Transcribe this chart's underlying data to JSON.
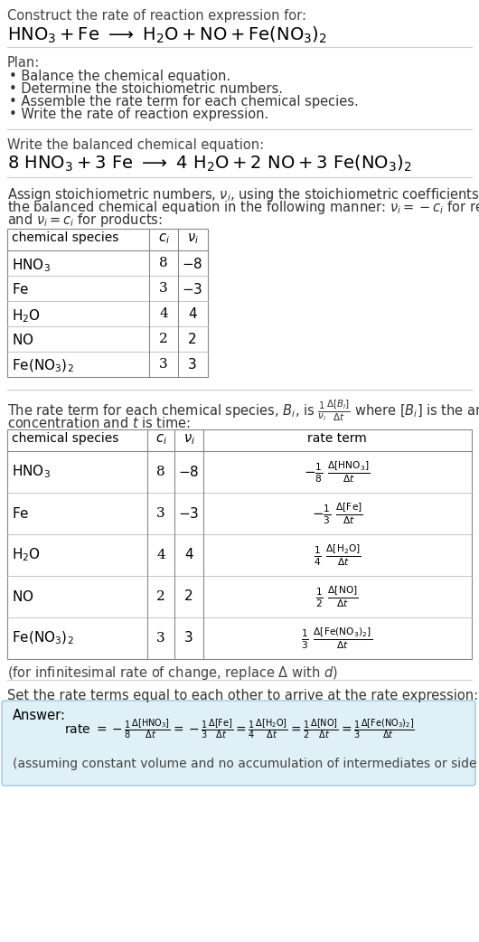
{
  "bg_color": "#ffffff",
  "light_blue_bg": "#dff0f7",
  "light_blue_border": "#9dc8dc",
  "separator_color": "#cccccc",
  "table_border_color": "#888888",
  "table_row_color": "#cccccc",
  "text_dark": "#222222",
  "text_gray": "#555555",
  "title_line1": "Construct the rate of reaction expression for:",
  "plan_header": "Plan:",
  "plan_items": [
    "• Balance the chemical equation.",
    "• Determine the stoichiometric numbers.",
    "• Assemble the rate term for each chemical species.",
    "• Write the rate of reaction expression."
  ],
  "balanced_header": "Write the balanced chemical equation:",
  "stoich_para": [
    "Assign stoichiometric numbers, $\\nu_i$, using the stoichiometric coefficients, $c_i$, from",
    "the balanced chemical equation in the following manner: $\\nu_i = -c_i$ for reactants",
    "and $\\nu_i = c_i$ for products:"
  ],
  "set_equal_header": "Set the rate terms equal to each other to arrive at the rate expression:",
  "infinitesimal_note": "(for infinitesimal rate of change, replace Δ with $d$)",
  "answer_label": "Answer:",
  "answer_note": "(assuming constant volume and no accumulation of intermediates or side products)"
}
